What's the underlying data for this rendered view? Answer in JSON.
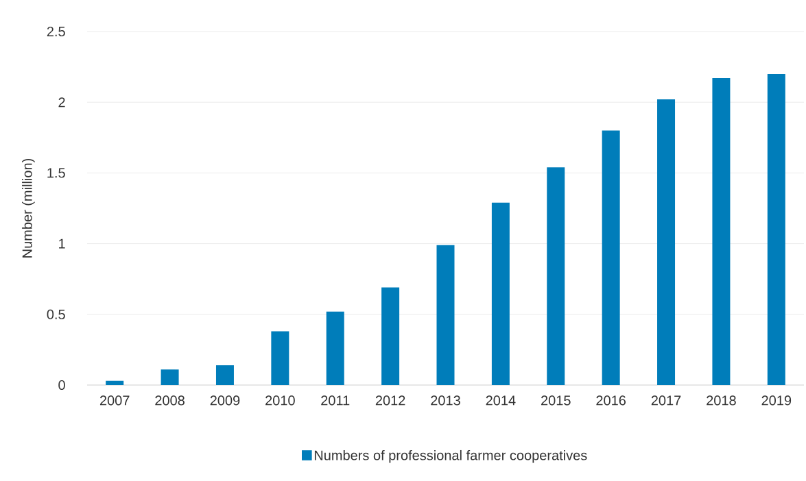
{
  "chart_data": {
    "type": "bar",
    "ylabel": "Number (million)",
    "categories": [
      "2007",
      "2008",
      "2009",
      "2010",
      "2011",
      "2012",
      "2013",
      "2014",
      "2015",
      "2016",
      "2017",
      "2018",
      "2019"
    ],
    "series": [
      {
        "name": "Numbers of professional farmer cooperatives",
        "color": "#007dba",
        "values": [
          0.03,
          0.11,
          0.14,
          0.38,
          0.52,
          0.69,
          0.99,
          1.29,
          1.54,
          1.8,
          2.02,
          2.17,
          2.2
        ]
      }
    ],
    "ylim": [
      0,
      2.5
    ],
    "yticks": [
      0,
      0.5,
      1,
      1.5,
      2,
      2.5
    ],
    "grid": "y",
    "legend": "bottom"
  }
}
